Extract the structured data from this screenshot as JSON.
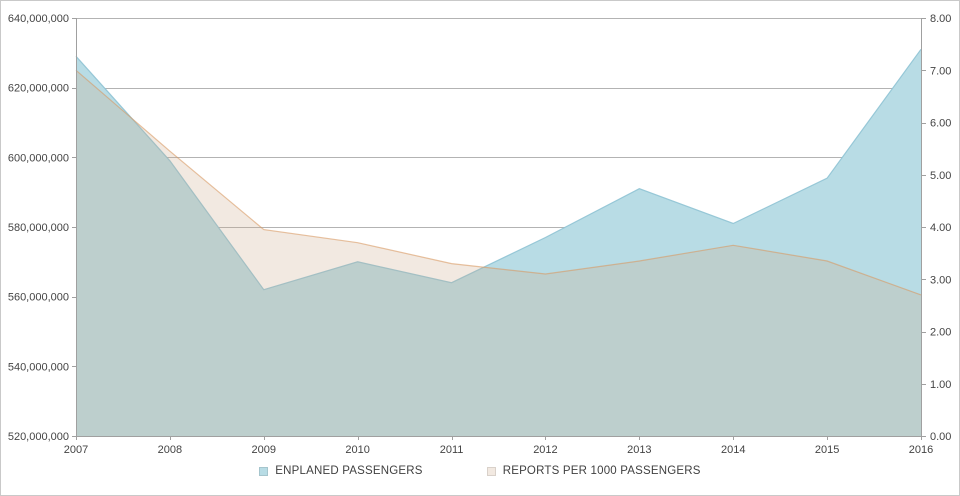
{
  "window": {
    "background": "#ffffff",
    "border_color": "#c9c9c9"
  },
  "chart_data": {
    "type": "area",
    "title": "",
    "categories": [
      "2007",
      "2008",
      "2009",
      "2010",
      "2011",
      "2012",
      "2013",
      "2014",
      "2015",
      "2016"
    ],
    "series": [
      {
        "name": "ENPLANED PASSENGERS",
        "axis": "left",
        "color": "#b8dce5",
        "fill_opacity": 1,
        "edge_color": "#8fc3d4",
        "edge_opacity": 0.9,
        "values": [
          629000000,
          599000000,
          562000000,
          570000000,
          564000000,
          577000000,
          591000000,
          581000000,
          594000000,
          631000000
        ]
      },
      {
        "name": "REPORTS PER 1000 PASSENGERS",
        "axis": "right",
        "color": "#cba787",
        "fill_opacity": 0.25,
        "edge_color": "#d89a62",
        "edge_opacity": 0.6,
        "values": [
          7.0,
          5.45,
          3.95,
          3.7,
          3.3,
          3.1,
          3.35,
          3.65,
          3.35,
          2.7
        ]
      }
    ],
    "left_axis": {
      "min": 520000000,
      "max": 640000000,
      "step": 20000000,
      "tick_labels": [
        "640,000,000",
        "620,000,000",
        "600,000,000",
        "580,000,000",
        "560,000,000",
        "540,000,000",
        "520,000,000"
      ]
    },
    "right_axis": {
      "min": 0,
      "max": 8,
      "step": 1,
      "tick_labels": [
        "8.00",
        "7.00",
        "6.00",
        "5.00",
        "4.00",
        "3.00",
        "2.00",
        "1.00",
        "0.00"
      ]
    },
    "grid": true,
    "legend_position": "bottom",
    "gridline_color": "#b3b3b3",
    "axis_color": "#a0a0a0",
    "label_color": "#444444"
  }
}
